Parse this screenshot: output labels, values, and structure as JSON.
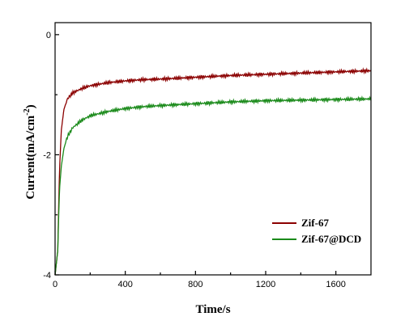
{
  "chart_data": {
    "type": "line",
    "title": "",
    "xlabel": "Time/s",
    "ylabel_main": "Current(mA/cm",
    "ylabel_sup": "-2",
    "ylabel_end": ")",
    "xlim": [
      0,
      1800
    ],
    "ylim": [
      -4,
      0.2
    ],
    "xticks": [
      0,
      400,
      800,
      1200,
      1600
    ],
    "yticks": [
      0,
      -2,
      -4
    ],
    "xtick_labels": [
      "0",
      "400",
      "800",
      "1200",
      "1600"
    ],
    "ytick_labels": [
      "0",
      "-2",
      "-4"
    ],
    "grid": false,
    "legend_position": "lower-right",
    "series": [
      {
        "name": "Zif-67",
        "color": "#8b0000",
        "x": [
          0,
          15,
          25,
          35,
          50,
          70,
          100,
          150,
          200,
          300,
          400,
          500,
          600,
          800,
          1000,
          1200,
          1400,
          1600,
          1800
        ],
        "y": [
          -4.0,
          -3.6,
          -2.3,
          -1.6,
          -1.25,
          -1.07,
          -0.97,
          -0.9,
          -0.85,
          -0.8,
          -0.77,
          -0.75,
          -0.74,
          -0.71,
          -0.68,
          -0.66,
          -0.64,
          -0.62,
          -0.6
        ]
      },
      {
        "name": "Zif-67@DCD",
        "color": "#1a8a1a",
        "x": [
          0,
          15,
          25,
          35,
          50,
          70,
          100,
          150,
          200,
          300,
          400,
          500,
          600,
          800,
          1000,
          1200,
          1400,
          1600,
          1800
        ],
        "y": [
          -4.0,
          -3.6,
          -2.6,
          -2.2,
          -1.9,
          -1.7,
          -1.55,
          -1.43,
          -1.35,
          -1.28,
          -1.23,
          -1.2,
          -1.18,
          -1.15,
          -1.12,
          -1.1,
          -1.09,
          -1.08,
          -1.07
        ]
      }
    ]
  }
}
